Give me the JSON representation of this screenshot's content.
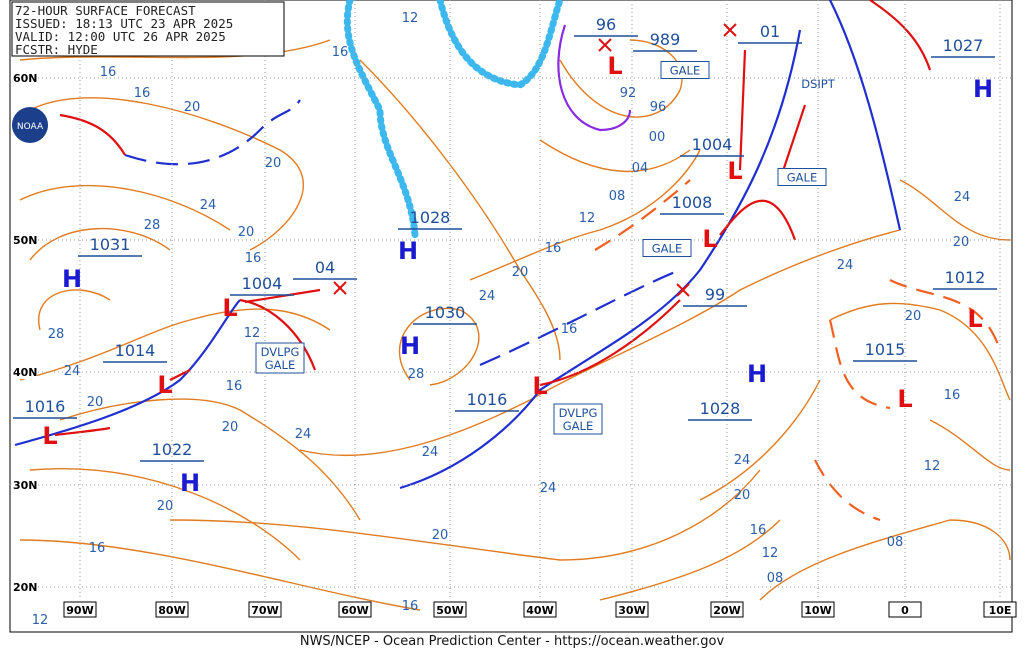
{
  "header": {
    "title": "72-HOUR SURFACE FORECAST",
    "issued": "ISSUED: 18:13 UTC 23 APR 2025",
    "valid": "VALID: 12:00 UTC 26 APR 2025",
    "fcstr": "FCSTR: HYDE"
  },
  "logo": "NOAA",
  "lat_labels": [
    "60N",
    "50N",
    "40N",
    "30N",
    "20N"
  ],
  "lon_labels": [
    "90W",
    "80W",
    "70W",
    "60W",
    "50W",
    "40W",
    "30W",
    "20W",
    "10W",
    "0",
    "10E"
  ],
  "centers": [
    {
      "symbol": "H",
      "pressure": "1031"
    },
    {
      "symbol": "H",
      "pressure": "1028"
    },
    {
      "symbol": "H",
      "pressure": "1030"
    },
    {
      "symbol": "H",
      "pressure": "1022"
    },
    {
      "symbol": "H",
      "pressure": "1028"
    },
    {
      "symbol": "H",
      "pressure": "1027"
    },
    {
      "symbol": "L",
      "pressure": "1004"
    },
    {
      "pressure": "04"
    },
    {
      "symbol": "L",
      "pressure": "1014"
    },
    {
      "symbol": "L",
      "pressure": "1016"
    },
    {
      "symbol": "L",
      "pressure": "1016"
    },
    {
      "symbol": "L",
      "pressure": "96"
    },
    {
      "pressure": "989"
    },
    {
      "symbol": "L",
      "pressure": "1004"
    },
    {
      "symbol": "L",
      "pressure": "1008"
    },
    {
      "pressure": "99"
    },
    {
      "pressure": "01"
    },
    {
      "symbol": "L",
      "pressure": "1012"
    },
    {
      "symbol": "L",
      "pressure": "1015"
    }
  ],
  "warnings": [
    {
      "lines": [
        "GALE"
      ]
    },
    {
      "lines": [
        "GALE"
      ]
    },
    {
      "lines": [
        "GALE"
      ]
    },
    {
      "lines": [
        "DVLPG",
        "GALE"
      ]
    },
    {
      "lines": [
        "DVLPG",
        "GALE"
      ]
    }
  ],
  "annotations": [
    "DSIPT"
  ],
  "isobar_labels": [
    "12",
    "16",
    "16",
    "16",
    "20",
    "20",
    "24",
    "28",
    "20",
    "16",
    "12",
    "28",
    "24",
    "20",
    "16",
    "20",
    "24",
    "20",
    "16",
    "12",
    "16",
    "20",
    "24",
    "24",
    "28",
    "24",
    "20",
    "16",
    "16",
    "12",
    "08",
    "04",
    "00",
    "96",
    "92",
    "24",
    "20",
    "16",
    "12",
    "08",
    "08",
    "12",
    "16",
    "20",
    "24",
    "20",
    "24"
  ],
  "footer": "NWS/NCEP - Ocean Prediction Center - https://ocean.weather.gov"
}
